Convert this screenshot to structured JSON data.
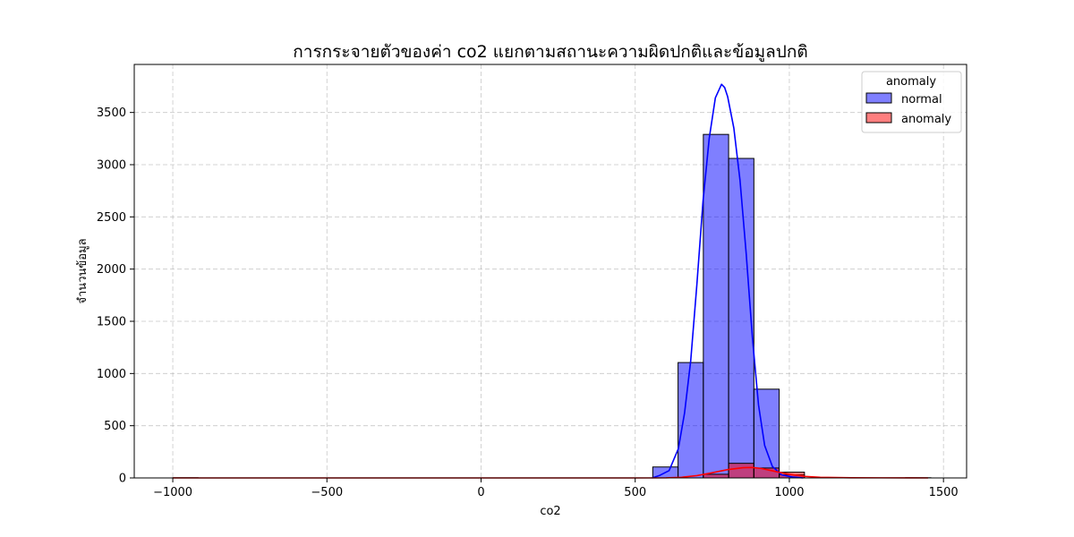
{
  "chart_data": {
    "type": "bar",
    "title": "การกระจายตัวของค่า co2 แยกตามสถานะความผิดปกติและข้อมูลปกติ",
    "xlabel": "co2",
    "ylabel": "จำนวนข้อมูล",
    "xlim": [
      -1125,
      1575
    ],
    "ylim": [
      0,
      3960
    ],
    "x_ticks": [
      -1000,
      -500,
      0,
      500,
      1000,
      1500
    ],
    "x_tick_labels": [
      "−1000",
      "−500",
      "0",
      "500",
      "1000",
      "1500"
    ],
    "y_ticks": [
      0,
      500,
      1000,
      1500,
      2000,
      2500,
      3000,
      3500
    ],
    "y_tick_labels": [
      "0",
      "500",
      "1000",
      "1500",
      "2000",
      "2500",
      "3000",
      "3500"
    ],
    "grid": true,
    "legend": {
      "title": "anomaly",
      "position": "top-right",
      "entries": [
        "normal",
        "anomaly"
      ]
    },
    "bin_width": 82,
    "series": [
      {
        "name": "normal",
        "color": "#0000ff",
        "bins": [
          {
            "start": 557,
            "value": 105
          },
          {
            "start": 639,
            "value": 1105
          },
          {
            "start": 721,
            "value": 3290
          },
          {
            "start": 803,
            "value": 3060
          },
          {
            "start": 885,
            "value": 850
          },
          {
            "start": 967,
            "value": 30
          }
        ],
        "kde": [
          [
            555,
            0
          ],
          [
            580,
            25
          ],
          [
            610,
            70
          ],
          [
            640,
            280
          ],
          [
            660,
            620
          ],
          [
            680,
            1120
          ],
          [
            700,
            1850
          ],
          [
            720,
            2650
          ],
          [
            740,
            3250
          ],
          [
            760,
            3640
          ],
          [
            780,
            3770
          ],
          [
            790,
            3740
          ],
          [
            800,
            3650
          ],
          [
            820,
            3350
          ],
          [
            840,
            2850
          ],
          [
            860,
            2150
          ],
          [
            880,
            1350
          ],
          [
            900,
            700
          ],
          [
            920,
            310
          ],
          [
            945,
            110
          ],
          [
            975,
            30
          ],
          [
            1010,
            8
          ],
          [
            1045,
            0
          ]
        ]
      },
      {
        "name": "anomaly",
        "color": "#ff0000",
        "bins": [
          {
            "start": -1000,
            "value": 2
          },
          {
            "start": 721,
            "value": 35
          },
          {
            "start": 803,
            "value": 140
          },
          {
            "start": 885,
            "value": 95
          },
          {
            "start": 967,
            "value": 55
          },
          {
            "start": 1377,
            "value": 2
          }
        ],
        "kde": [
          [
            -1000,
            0
          ],
          [
            500,
            0
          ],
          [
            600,
            1
          ],
          [
            650,
            6
          ],
          [
            700,
            22
          ],
          [
            750,
            50
          ],
          [
            800,
            80
          ],
          [
            850,
            98
          ],
          [
            880,
            100
          ],
          [
            910,
            90
          ],
          [
            950,
            65
          ],
          [
            1000,
            35
          ],
          [
            1050,
            15
          ],
          [
            1100,
            6
          ],
          [
            1200,
            2
          ],
          [
            1300,
            1
          ],
          [
            1450,
            0
          ]
        ]
      }
    ]
  }
}
